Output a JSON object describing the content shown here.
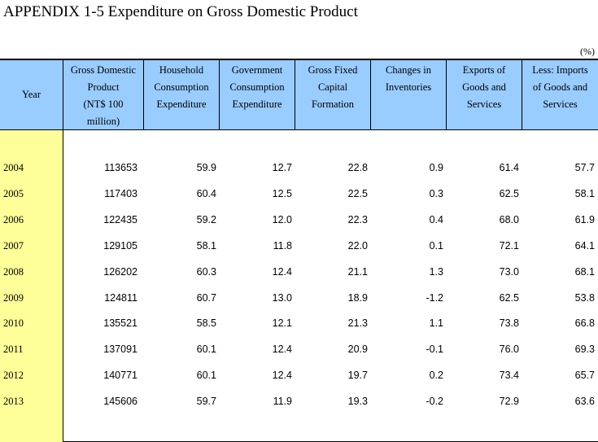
{
  "title": "APPENDIX 1-5  Expenditure on Gross Domestic Product",
  "unit": "(%)",
  "columns": [
    {
      "lines": [
        "Year"
      ]
    },
    {
      "lines": [
        "Gross Domestic",
        "Product",
        "(NT$ 100",
        "million)"
      ]
    },
    {
      "lines": [
        "Household",
        "Consumption",
        "Expenditure"
      ]
    },
    {
      "lines": [
        "Government",
        "Consumption",
        "Expenditure"
      ]
    },
    {
      "lines": [
        "Gross Fixed",
        "Capital",
        "Formation"
      ]
    },
    {
      "lines": [
        "Changes in",
        "Inventories"
      ]
    },
    {
      "lines": [
        "Exports of",
        "Goods and",
        "Services"
      ]
    },
    {
      "lines": [
        "Less: Imports",
        "of Goods and",
        "Services"
      ]
    }
  ],
  "colors": {
    "header_bg": "#99ccff",
    "year_col_bg": "#ffff99"
  },
  "rows": [
    [
      "2004",
      "113653",
      "59.9",
      "12.7",
      "22.8",
      "0.9",
      "61.4",
      "57.7"
    ],
    [
      "2005",
      "117403",
      "60.4",
      "12.5",
      "22.5",
      "0.3",
      "62.5",
      "58.1"
    ],
    [
      "2006",
      "122435",
      "59.2",
      "12.0",
      "22.3",
      "0.4",
      "68.0",
      "61.9"
    ],
    [
      "2007",
      "129105",
      "58.1",
      "11.8",
      "22.0",
      "0.1",
      "72.1",
      "64.1"
    ],
    [
      "2008",
      "126202",
      "60.3",
      "12.4",
      "21.1",
      "1.3",
      "73.0",
      "68.1"
    ],
    [
      "2009",
      "124811",
      "60.7",
      "13.0",
      "18.9",
      "-1.2",
      "62.5",
      "53.8"
    ],
    [
      "2010",
      "135521",
      "58.5",
      "12.1",
      "21.3",
      "1.1",
      "73.8",
      "66.8"
    ],
    [
      "2011",
      "137091",
      "60.1",
      "12.4",
      "20.9",
      "-0.1",
      "76.0",
      "69.3"
    ],
    [
      "2012",
      "140771",
      "60.1",
      "12.4",
      "19.7",
      "0.2",
      "73.4",
      "65.7"
    ],
    [
      "2013",
      "145606",
      "59.7",
      "11.9",
      "19.3",
      "-0.2",
      "72.9",
      "63.6"
    ]
  ]
}
